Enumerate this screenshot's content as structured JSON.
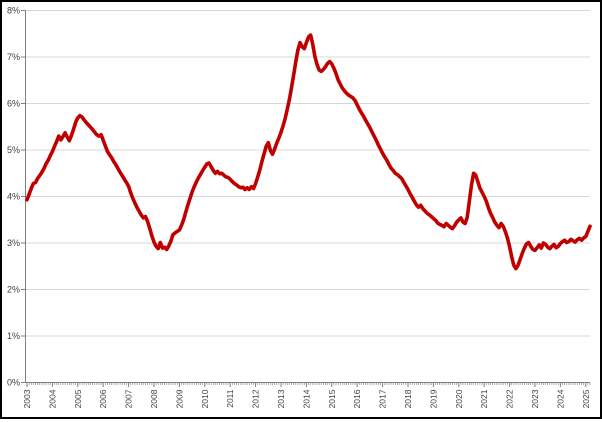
{
  "chart_data": {
    "type": "line",
    "title": "",
    "xlabel": "",
    "ylabel": "",
    "frequency": "monthly",
    "x_start": "2003-01",
    "x_end": "2025-03",
    "x_tick_labels": [
      "2003",
      "2004",
      "2005",
      "2006",
      "2007",
      "2008",
      "2009",
      "2010",
      "2011",
      "2012",
      "2013",
      "2014",
      "2015",
      "2016",
      "2017",
      "2018",
      "2019",
      "2020",
      "2021",
      "2022",
      "2023",
      "2024",
      "2025"
    ],
    "y_tick_labels": [
      "0%",
      "1%",
      "2%",
      "3%",
      "4%",
      "5%",
      "6%",
      "7%",
      "8%"
    ],
    "ylim": [
      0,
      8
    ],
    "grid": true,
    "legend": "none",
    "series": [
      {
        "name": "percentage",
        "values": [
          3.93,
          4.05,
          4.17,
          4.28,
          4.3,
          4.39,
          4.45,
          4.52,
          4.6,
          4.7,
          4.78,
          4.88,
          4.97,
          5.08,
          5.18,
          5.3,
          5.22,
          5.29,
          5.37,
          5.28,
          5.2,
          5.31,
          5.45,
          5.6,
          5.69,
          5.74,
          5.71,
          5.65,
          5.59,
          5.54,
          5.49,
          5.44,
          5.38,
          5.33,
          5.3,
          5.33,
          5.21,
          5.09,
          4.97,
          4.9,
          4.83,
          4.75,
          4.68,
          4.6,
          4.52,
          4.45,
          4.37,
          4.3,
          4.22,
          4.08,
          3.96,
          3.86,
          3.76,
          3.68,
          3.6,
          3.54,
          3.57,
          3.46,
          3.31,
          3.15,
          3.02,
          2.93,
          2.88,
          3.01,
          2.89,
          2.91,
          2.86,
          2.94,
          3.04,
          3.18,
          3.22,
          3.25,
          3.28,
          3.38,
          3.5,
          3.66,
          3.82,
          3.96,
          4.1,
          4.21,
          4.31,
          4.4,
          4.48,
          4.56,
          4.63,
          4.7,
          4.72,
          4.64,
          4.56,
          4.5,
          4.54,
          4.49,
          4.5,
          4.46,
          4.42,
          4.41,
          4.37,
          4.32,
          4.28,
          4.25,
          4.21,
          4.19,
          4.2,
          4.15,
          4.19,
          4.15,
          4.21,
          4.17,
          4.28,
          4.42,
          4.57,
          4.75,
          4.92,
          5.08,
          5.16,
          4.99,
          4.91,
          5.02,
          5.15,
          5.26,
          5.38,
          5.52,
          5.68,
          5.88,
          6.1,
          6.35,
          6.62,
          6.9,
          7.15,
          7.31,
          7.22,
          7.18,
          7.31,
          7.43,
          7.47,
          7.28,
          7.02,
          6.84,
          6.72,
          6.69,
          6.73,
          6.79,
          6.86,
          6.9,
          6.85,
          6.76,
          6.64,
          6.51,
          6.42,
          6.33,
          6.27,
          6.22,
          6.18,
          6.15,
          6.12,
          6.06,
          5.97,
          5.88,
          5.8,
          5.73,
          5.64,
          5.56,
          5.48,
          5.39,
          5.3,
          5.21,
          5.11,
          5.02,
          4.93,
          4.85,
          4.78,
          4.69,
          4.61,
          4.56,
          4.5,
          4.47,
          4.43,
          4.39,
          4.31,
          4.23,
          4.15,
          4.06,
          3.98,
          3.9,
          3.82,
          3.77,
          3.81,
          3.74,
          3.69,
          3.64,
          3.61,
          3.57,
          3.53,
          3.49,
          3.43,
          3.4,
          3.38,
          3.35,
          3.42,
          3.38,
          3.34,
          3.31,
          3.37,
          3.45,
          3.5,
          3.54,
          3.45,
          3.42,
          3.55,
          3.91,
          4.25,
          4.5,
          4.46,
          4.32,
          4.18,
          4.09,
          4.0,
          3.9,
          3.76,
          3.64,
          3.55,
          3.45,
          3.38,
          3.33,
          3.42,
          3.36,
          3.25,
          3.1,
          2.92,
          2.7,
          2.52,
          2.45,
          2.52,
          2.65,
          2.78,
          2.89,
          2.98,
          3.01,
          2.93,
          2.86,
          2.84,
          2.9,
          2.96,
          2.89,
          3.0,
          2.97,
          2.91,
          2.88,
          2.93,
          2.97,
          2.9,
          2.93,
          2.99,
          3.03,
          3.06,
          3.01,
          3.03,
          3.08,
          3.05,
          3.02,
          3.07,
          3.1,
          3.06,
          3.11,
          3.14,
          3.25,
          3.36
        ]
      }
    ]
  },
  "style": {
    "background_color": "#FFFFFF",
    "frame_border_color": "#000000",
    "gridline_color": "#D9D9D9",
    "axis_color": "#808080",
    "tick_label_color": "#404040",
    "line_color": "#C00000"
  }
}
